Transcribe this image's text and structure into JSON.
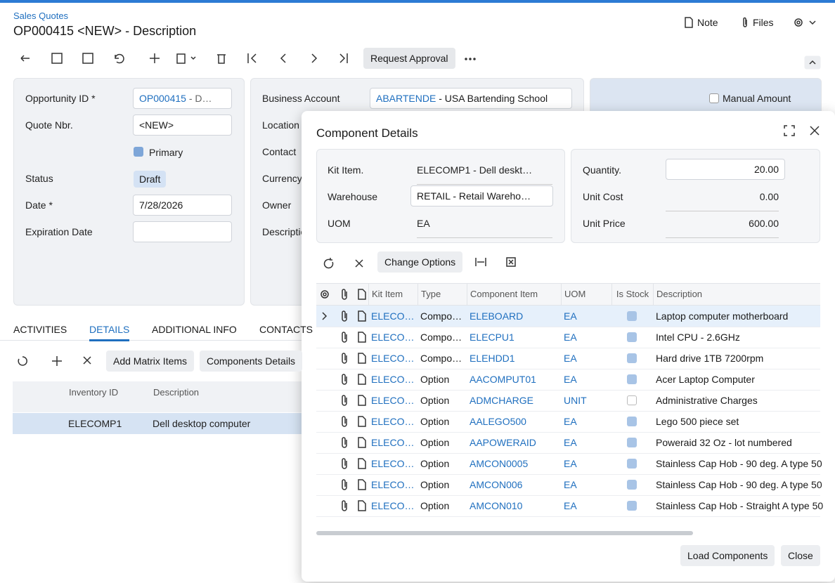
{
  "header": {
    "breadcrumb": "Sales Quotes",
    "title": "OP000415 <NEW> - Description",
    "note": "Note",
    "files": "Files"
  },
  "toolbar": {
    "request_approval": "Request Approval"
  },
  "form": {
    "opportunity_id": {
      "label": "Opportunity ID *",
      "link": "OP000415",
      "rest": "- D…"
    },
    "quote_nbr": {
      "label": "Quote Nbr.",
      "value": "<NEW>"
    },
    "primary": {
      "label": "Primary"
    },
    "status": {
      "label": "Status",
      "value": "Draft"
    },
    "date": {
      "label": "Date *",
      "value": "7/28/2026"
    },
    "expiration_date": {
      "label": "Expiration Date"
    },
    "business_account": {
      "label": "Business Account",
      "link": "ABARTENDE",
      "rest": "- USA Bartending School"
    },
    "location": {
      "label": "Location"
    },
    "contact": {
      "label": "Contact"
    },
    "currency": {
      "label": "Currency"
    },
    "owner": {
      "label": "Owner"
    },
    "description": {
      "label": "Description"
    },
    "manual_amount": {
      "label": "Manual Amount"
    }
  },
  "tabs": [
    "ACTIVITIES",
    "DETAILS",
    "ADDITIONAL INFO",
    "CONTACTS"
  ],
  "details": {
    "buttons": [
      "Add Matrix Items",
      "Components Details"
    ],
    "columns": [
      "Inventory ID",
      "Description"
    ],
    "rows": [
      [
        "ELECOMP1",
        "Dell desktop computer"
      ]
    ]
  },
  "dialog": {
    "title": "Component Details",
    "fields": {
      "kit_item": {
        "label": "Kit Item.",
        "value": "ELECOMP1 - Dell deskt…"
      },
      "warehouse": {
        "label": "Warehouse",
        "value": "RETAIL - Retail Wareho…"
      },
      "uom": {
        "label": "UOM",
        "value": "EA"
      },
      "quantity": {
        "label": "Quantity.",
        "value": "20.00"
      },
      "unit_cost": {
        "label": "Unit Cost",
        "value": "0.00"
      },
      "unit_price": {
        "label": "Unit Price",
        "value": "600.00"
      }
    },
    "change_options": "Change Options",
    "columns": [
      "Kit Item",
      "Type",
      "Component Item",
      "UOM",
      "Is Stock",
      "Description"
    ],
    "rows": [
      [
        "ELECO…",
        "Compo…",
        "ELEBOARD",
        "EA",
        true,
        "Laptop computer motherboard"
      ],
      [
        "ELECO…",
        "Compo…",
        "ELECPU1",
        "EA",
        true,
        "Intel CPU - 2.6GHz"
      ],
      [
        "ELECO…",
        "Compo…",
        "ELEHDD1",
        "EA",
        true,
        "Hard drive 1TB 7200rpm"
      ],
      [
        "ELECO…",
        "Option",
        "AACOMPUT01",
        "EA",
        true,
        "Acer Laptop Computer"
      ],
      [
        "ELECO…",
        "Option",
        "ADMCHARGE",
        "UNIT",
        false,
        "Administrative Charges"
      ],
      [
        "ELECO…",
        "Option",
        "AALEGO500",
        "EA",
        true,
        "Lego 500 piece set"
      ],
      [
        "ELECO…",
        "Option",
        "AAPOWERAID",
        "EA",
        true,
        "Poweraid 32 Oz - lot numbered"
      ],
      [
        "ELECO…",
        "Option",
        "AMCON0005",
        "EA",
        true,
        "Stainless Cap Hob - 90 deg. A type 50"
      ],
      [
        "ELECO…",
        "Option",
        "AMCON006",
        "EA",
        true,
        "Stainless Cap Hob - 90 deg. A type 50"
      ],
      [
        "ELECO…",
        "Option",
        "AMCON010",
        "EA",
        true,
        "Stainless Cap Hob - Straight A type 50"
      ]
    ],
    "load_components": "Load Components",
    "close": "Close"
  }
}
